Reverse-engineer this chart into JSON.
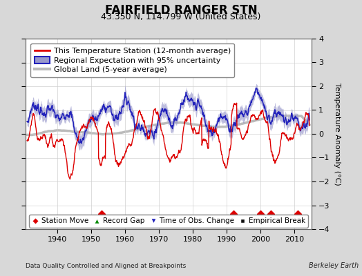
{
  "title": "FAIRFIELD RANGER STN",
  "subtitle": "43.350 N, 114.799 W (United States)",
  "ylabel": "Temperature Anomaly (°C)",
  "xlabel_note": "Data Quality Controlled and Aligned at Breakpoints",
  "credit": "Berkeley Earth",
  "year_start": 1931.0,
  "year_end": 2014.5,
  "xlim_left": 1930.5,
  "xlim_right": 2015.0,
  "ylim": [
    -4,
    4
  ],
  "yticks": [
    -4,
    -3,
    -2,
    -1,
    0,
    1,
    2,
    3,
    4
  ],
  "xticks": [
    1940,
    1950,
    1960,
    1970,
    1980,
    1990,
    2000,
    2010
  ],
  "bg_color": "#d8d8d8",
  "plot_bg_color": "#ffffff",
  "station_color": "#dd0000",
  "regional_color": "#2222bb",
  "regional_uncertainty_color": "#9999cc",
  "global_color": "#bbbbbb",
  "marker_color": "#dd0000",
  "marker_green": "#008800",
  "marker_blue": "#2222bb",
  "marker_black": "#111111",
  "station_markers": [
    1953,
    1992,
    2000,
    2003,
    2011
  ],
  "title_fontsize": 12,
  "subtitle_fontsize": 9,
  "tick_fontsize": 8,
  "legend_fontsize": 8,
  "ylabel_fontsize": 8
}
